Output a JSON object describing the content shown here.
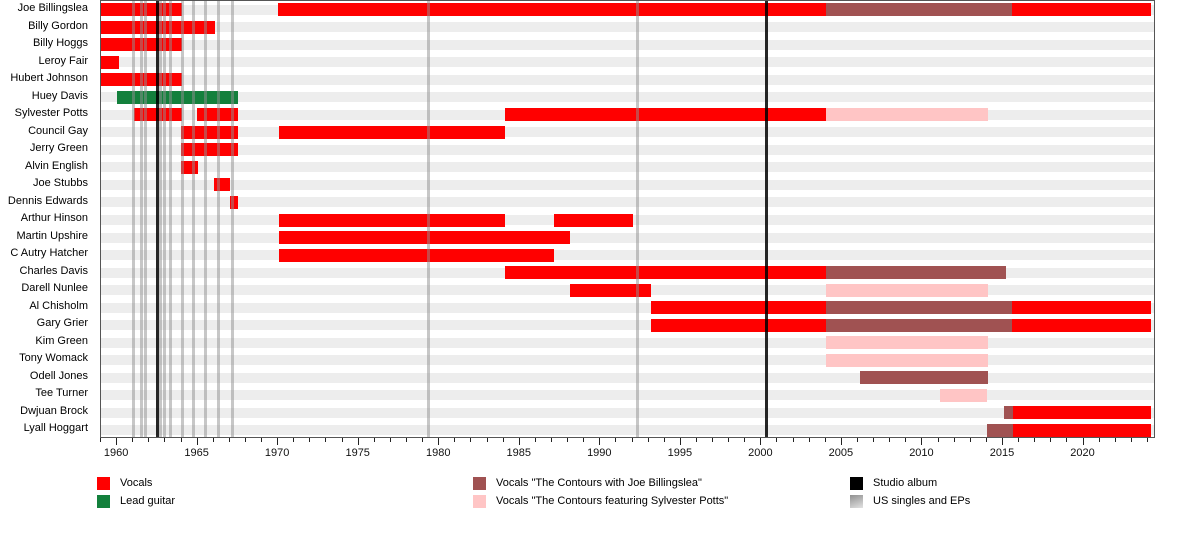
{
  "chart_data": {
    "type": "bar",
    "variant": "band-membership-timeline-gantt",
    "title": "",
    "xlabel": "",
    "ylabel": "",
    "grid": "row-stripes",
    "x_axis": {
      "min": 1959,
      "max": 2024.5,
      "major_ticks": [
        1960,
        1965,
        1970,
        1975,
        1980,
        1985,
        1990,
        1995,
        2000,
        2005,
        2010,
        2015,
        2020
      ],
      "minor_tick_step": 1
    },
    "roles": {
      "vocals": {
        "label": "Vocals",
        "color": "#ff0000"
      },
      "lead_guitar": {
        "label": "Lead guitar",
        "color": "#13803c"
      },
      "with_joe": {
        "label": "Vocals \"The Contours with Joe Billingslea\"",
        "color": "#a05252"
      },
      "feat_potts": {
        "label": "Vocals \"The Contours featuring Sylvester Potts\"",
        "color": "#ffc5c5"
      }
    },
    "members": [
      {
        "name": "Joe Billingslea",
        "segments": [
          {
            "role": "vocals",
            "start": 1959,
            "end": 1964.05
          },
          {
            "role": "vocals",
            "start": 1970,
            "end": 2004.1
          },
          {
            "role": "with_joe",
            "start": 2004.1,
            "end": 2015.65
          },
          {
            "role": "vocals",
            "start": 2015.65,
            "end": 2024.3
          }
        ]
      },
      {
        "name": "Billy Gordon",
        "segments": [
          {
            "role": "vocals",
            "start": 1959,
            "end": 1966.1
          }
        ]
      },
      {
        "name": "Billy Hoggs",
        "segments": [
          {
            "role": "vocals",
            "start": 1959,
            "end": 1964.05
          }
        ]
      },
      {
        "name": "Leroy Fair",
        "segments": [
          {
            "role": "vocals",
            "start": 1959,
            "end": 1960.1
          }
        ]
      },
      {
        "name": "Hubert Johnson",
        "segments": [
          {
            "role": "vocals",
            "start": 1959,
            "end": 1964.05
          }
        ]
      },
      {
        "name": "Huey Davis",
        "segments": [
          {
            "role": "lead_guitar",
            "start": 1960,
            "end": 1967.5
          }
        ]
      },
      {
        "name": "Sylvester Potts",
        "segments": [
          {
            "role": "vocals",
            "start": 1961.05,
            "end": 1964.05
          },
          {
            "role": "vocals",
            "start": 1964.95,
            "end": 1967.5
          },
          {
            "role": "vocals",
            "start": 1984.1,
            "end": 2004.1
          },
          {
            "role": "feat_potts",
            "start": 2004.1,
            "end": 2014.2
          }
        ]
      },
      {
        "name": "Council Gay",
        "segments": [
          {
            "role": "vocals",
            "start": 1963.95,
            "end": 1967.5
          },
          {
            "role": "vocals",
            "start": 1970.05,
            "end": 1984.1
          }
        ]
      },
      {
        "name": "Jerry Green",
        "segments": [
          {
            "role": "vocals",
            "start": 1963.95,
            "end": 1967.5
          }
        ]
      },
      {
        "name": "Alvin English",
        "segments": [
          {
            "role": "vocals",
            "start": 1963.95,
            "end": 1965.05
          }
        ]
      },
      {
        "name": "Joe Stubbs",
        "segments": [
          {
            "role": "vocals",
            "start": 1966.0,
            "end": 1967.05
          }
        ]
      },
      {
        "name": "Dennis Edwards",
        "segments": [
          {
            "role": "vocals",
            "start": 1967.0,
            "end": 1967.55
          }
        ]
      },
      {
        "name": "Arthur Hinson",
        "segments": [
          {
            "role": "vocals",
            "start": 1970.05,
            "end": 1984.1
          },
          {
            "role": "vocals",
            "start": 1987.2,
            "end": 1992.1
          }
        ]
      },
      {
        "name": "Martin Upshire",
        "segments": [
          {
            "role": "vocals",
            "start": 1970.05,
            "end": 1988.2
          }
        ]
      },
      {
        "name": "C Autry Hatcher",
        "segments": [
          {
            "role": "vocals",
            "start": 1970.05,
            "end": 1987.2
          }
        ]
      },
      {
        "name": "Charles Davis",
        "segments": [
          {
            "role": "vocals",
            "start": 1984.1,
            "end": 2004.1
          },
          {
            "role": "with_joe",
            "start": 2004.1,
            "end": 2015.3
          }
        ]
      },
      {
        "name": "Darell Nunlee",
        "segments": [
          {
            "role": "vocals",
            "start": 1988.2,
            "end": 1993.2
          },
          {
            "role": "feat_potts",
            "start": 2004.1,
            "end": 2014.2
          }
        ]
      },
      {
        "name": "Al Chisholm",
        "segments": [
          {
            "role": "vocals",
            "start": 1993.2,
            "end": 2004.1
          },
          {
            "role": "with_joe",
            "start": 2004.1,
            "end": 2015.65
          },
          {
            "role": "vocals",
            "start": 2015.65,
            "end": 2024.3
          }
        ]
      },
      {
        "name": "Gary Grier",
        "segments": [
          {
            "role": "vocals",
            "start": 1993.2,
            "end": 2004.1
          },
          {
            "role": "with_joe",
            "start": 2004.1,
            "end": 2015.65
          },
          {
            "role": "vocals",
            "start": 2015.65,
            "end": 2024.3
          }
        ]
      },
      {
        "name": "Kim Green",
        "segments": [
          {
            "role": "feat_potts",
            "start": 2004.1,
            "end": 2014.2
          }
        ]
      },
      {
        "name": "Tony Womack",
        "segments": [
          {
            "role": "feat_potts",
            "start": 2004.1,
            "end": 2014.2
          }
        ]
      },
      {
        "name": "Odell Jones",
        "segments": [
          {
            "role": "with_joe",
            "start": 2006.2,
            "end": 2014.2
          }
        ]
      },
      {
        "name": "Tee Turner",
        "segments": [
          {
            "role": "feat_potts",
            "start": 2011.2,
            "end": 2014.1
          }
        ]
      },
      {
        "name": "Dwjuan Brock",
        "segments": [
          {
            "role": "with_joe",
            "start": 2015.2,
            "end": 2015.7
          },
          {
            "role": "vocals",
            "start": 2015.7,
            "end": 2024.3
          }
        ]
      },
      {
        "name": "Lyall Hoggart",
        "segments": [
          {
            "role": "with_joe",
            "start": 2014.1,
            "end": 2015.7
          },
          {
            "role": "vocals",
            "start": 2015.7,
            "end": 2024.3
          }
        ]
      }
    ],
    "events": {
      "studio_albums": [
        1962.5,
        2000.4
      ],
      "us_singles_eps": [
        1961.0,
        1961.5,
        1961.75,
        1962.7,
        1962.95,
        1963.3,
        1964.1,
        1964.75,
        1965.5,
        1966.3,
        1967.2,
        1979.4,
        1992.4
      ]
    }
  },
  "legend": {
    "columns": [
      [
        {
          "swatch": "#ff0000",
          "label": "Vocals",
          "icon": "vocals-swatch"
        },
        {
          "swatch": "#13803c",
          "label": "Lead guitar",
          "icon": "lead-guitar-swatch"
        }
      ],
      [
        {
          "swatch": "#a05252",
          "label": "Vocals \"The Contours with Joe Billingslea\"",
          "icon": "with-joe-swatch"
        },
        {
          "swatch": "#ffc5c5",
          "label": "Vocals \"The Contours featuring Sylvester Potts\"",
          "icon": "feat-potts-swatch"
        }
      ],
      [
        {
          "swatch": "#000000",
          "label": "Studio album",
          "icon": "studio-album-swatch"
        },
        {
          "swatch": "gradient-gray",
          "label": "US singles and EPs",
          "icon": "us-singles-swatch"
        }
      ]
    ]
  }
}
